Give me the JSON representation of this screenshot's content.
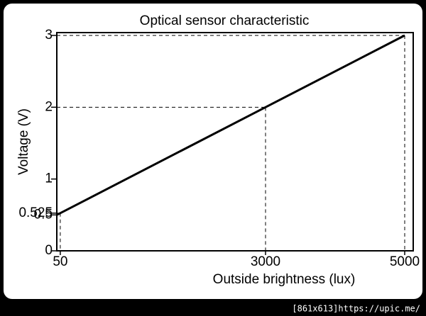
{
  "chart_data": {
    "type": "line",
    "title": "Optical sensor characteristic",
    "x_label": "Outside brightness (lux)",
    "y_label": "Voltage (V)",
    "series": [
      {
        "name": "Voltage",
        "color": "#000000",
        "x": [
          0,
          50,
          3000,
          5000
        ],
        "values": [
          0.5,
          0.525,
          2,
          3
        ]
      }
    ],
    "xlim": [
      0,
      5000
    ],
    "xticks": [
      50,
      3000,
      5000
    ],
    "ylim": [
      0,
      3
    ],
    "yticks": [
      0,
      0.5,
      0.525,
      1,
      2,
      3
    ],
    "guide_lines": "dashed"
  },
  "watermark": "[861x613]https://upic.me/"
}
